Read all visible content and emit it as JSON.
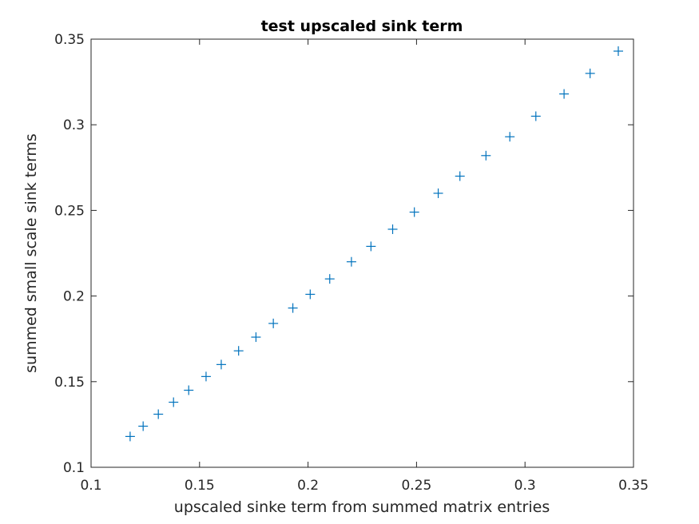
{
  "chart_data": {
    "type": "scatter",
    "title": "test upscaled sink term",
    "xlabel": "upscaled sinke term from summed matrix entries",
    "ylabel": "summed small scale sink terms",
    "xlim": [
      0.1,
      0.35
    ],
    "ylim": [
      0.1,
      0.35
    ],
    "xticks": [
      0.1,
      0.15,
      0.2,
      0.25,
      0.3,
      0.35
    ],
    "yticks": [
      0.1,
      0.15,
      0.2,
      0.25,
      0.3,
      0.35
    ],
    "xtick_labels": [
      "0.1",
      "0.15",
      "0.2",
      "0.25",
      "0.3",
      "0.35"
    ],
    "ytick_labels": [
      "0.1",
      "0.15",
      "0.2",
      "0.25",
      "0.3",
      "0.35"
    ],
    "grid": false,
    "marker": "+",
    "color": "#0072BD",
    "series": [
      {
        "x": [
          0.118,
          0.124,
          0.131,
          0.138,
          0.145,
          0.153,
          0.16,
          0.168,
          0.176,
          0.184,
          0.193,
          0.201,
          0.21,
          0.22,
          0.229,
          0.239,
          0.249,
          0.26,
          0.27,
          0.282,
          0.293,
          0.305,
          0.318,
          0.33,
          0.343
        ],
        "y": [
          0.118,
          0.124,
          0.131,
          0.138,
          0.145,
          0.153,
          0.16,
          0.168,
          0.176,
          0.184,
          0.193,
          0.201,
          0.21,
          0.22,
          0.229,
          0.239,
          0.249,
          0.26,
          0.27,
          0.282,
          0.293,
          0.305,
          0.318,
          0.33,
          0.343
        ]
      }
    ]
  }
}
